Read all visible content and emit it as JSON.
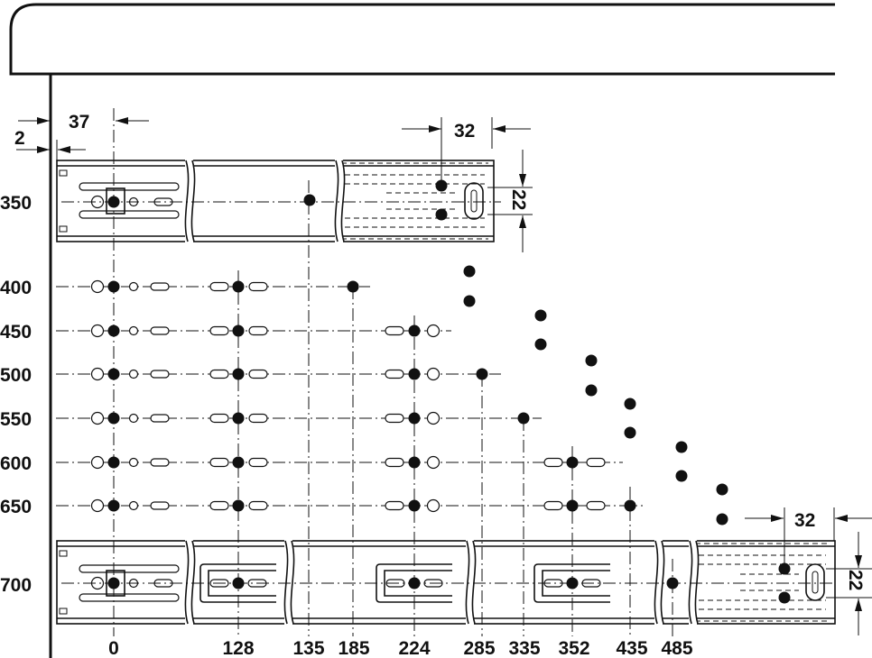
{
  "rows": [
    "350",
    "400",
    "450",
    "500",
    "550",
    "600",
    "650",
    "700"
  ],
  "columns": [
    "0",
    "128",
    "135",
    "185",
    "224",
    "285",
    "335",
    "352",
    "435",
    "485"
  ],
  "dimensions": {
    "wall_offset": "2",
    "first_hole_offset": "37",
    "top_rear_spacing": "32",
    "top_rear_height": "22",
    "bottom_rear_spacing": "32",
    "bottom_rear_height": "22"
  },
  "colors": {
    "line": "#111111",
    "background": "#ffffff"
  }
}
